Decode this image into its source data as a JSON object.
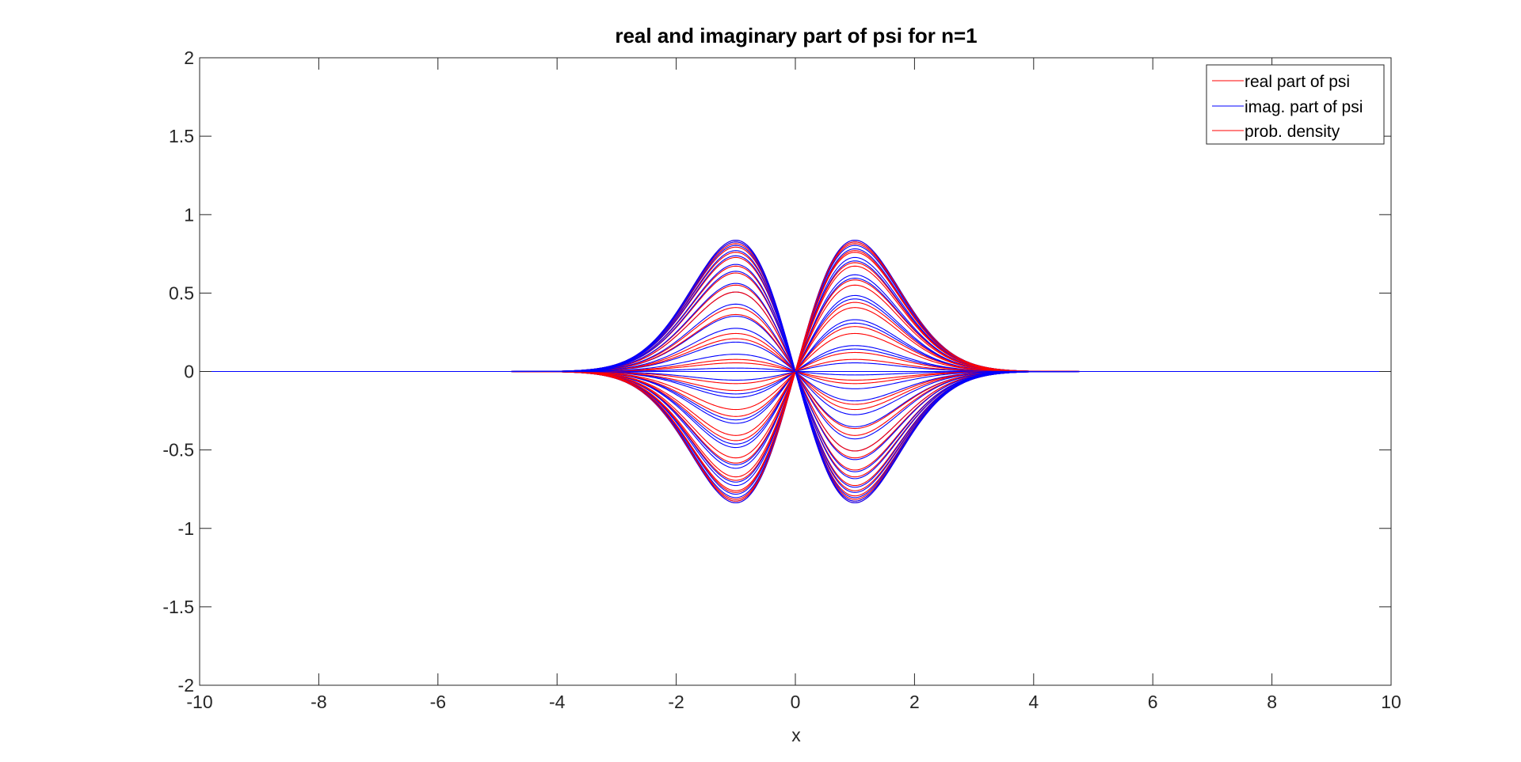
{
  "chart_data": {
    "type": "line",
    "title": "real and imaginary part of psi for n=1",
    "xlabel": "x",
    "ylabel": "",
    "xlim": [
      -10,
      10
    ],
    "ylim": [
      -2,
      2
    ],
    "xticks": [
      -10,
      -8,
      -6,
      -4,
      -2,
      0,
      2,
      4,
      6,
      8,
      10
    ],
    "xtick_labels": [
      "-10",
      "-8",
      "-6",
      "-4",
      "-2",
      "0",
      "2",
      "4",
      "6",
      "8",
      "10"
    ],
    "yticks": [
      -2,
      -1.5,
      -1,
      -0.5,
      0,
      0.5,
      1,
      1.5,
      2
    ],
    "ytick_labels": [
      "-2",
      "-1.5",
      "-1",
      "-0.5",
      "0",
      "0.5",
      "1",
      "1.5",
      "2"
    ],
    "grid": false,
    "legend_position": "top-right",
    "legend": [
      {
        "label": "real part of psi",
        "color": "#ff0000"
      },
      {
        "label": "imag. part of psi",
        "color": "#0000ff"
      },
      {
        "label": "prob. density",
        "color": "#ff0000"
      }
    ],
    "curve_family": {
      "function": "A(t) * sqrt(2) * pi^(-1/4) * x * exp(-x^2/2)",
      "peak_x": [
        -0.71,
        0.71
      ],
      "peak_value": 0.76,
      "real_part_amplitudes": [
        0.76,
        0.74,
        0.69,
        0.61,
        0.5,
        0.37,
        0.22,
        0.07,
        -0.07,
        -0.22,
        -0.37,
        -0.5,
        -0.61,
        -0.69,
        -0.74,
        -0.76,
        -0.75,
        -0.72,
        -0.66,
        -0.57,
        -0.46,
        -0.33,
        -0.19,
        -0.05,
        0.11,
        0.26,
        0.4,
        0.53,
        0.63,
        0.7,
        0.75
      ],
      "imag_part_amplitudes": [
        0.0,
        0.15,
        0.3,
        0.44,
        0.56,
        0.66,
        0.73,
        0.76,
        0.75,
        0.71,
        0.64,
        0.54,
        0.42,
        0.28,
        0.13,
        -0.02,
        -0.17,
        -0.32,
        -0.46,
        -0.58,
        -0.67,
        -0.73,
        -0.76,
        -0.75,
        -0.7,
        -0.62,
        -0.51,
        -0.39,
        -0.25,
        -0.1,
        0.05
      ]
    }
  },
  "colors": {
    "real": "#ff0000",
    "imag": "#0000ff",
    "axes": "#262626"
  }
}
